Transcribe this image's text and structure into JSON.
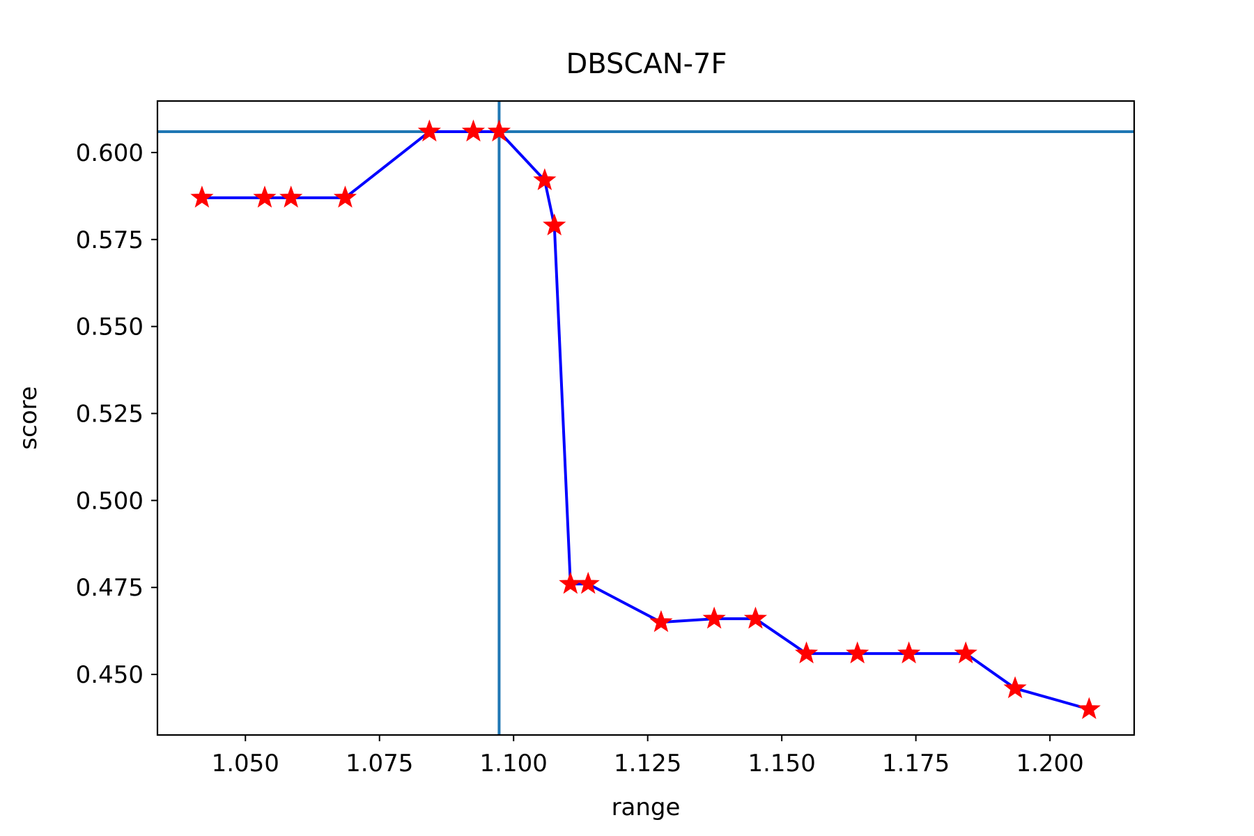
{
  "chart_data": {
    "type": "line",
    "title": "DBSCAN-7F",
    "xlabel": "range",
    "ylabel": "score",
    "xlim": [
      1.0336,
      1.2157
    ],
    "ylim": [
      0.4326,
      0.6148
    ],
    "xticks": [
      1.05,
      1.075,
      1.1,
      1.125,
      1.15,
      1.175,
      1.2
    ],
    "xtick_labels": [
      "1.050",
      "1.075",
      "1.100",
      "1.125",
      "1.150",
      "1.175",
      "1.200"
    ],
    "yticks": [
      0.45,
      0.475,
      0.5,
      0.525,
      0.55,
      0.575,
      0.6
    ],
    "ytick_labels": [
      "0.450",
      "0.475",
      "0.500",
      "0.525",
      "0.550",
      "0.575",
      "0.600"
    ],
    "grid": false,
    "series": [
      {
        "line_color": "#0000ff",
        "marker": "star",
        "marker_color": "#ff0000",
        "x": [
          1.0419,
          1.0536,
          1.0585,
          1.0686,
          1.0843,
          1.0925,
          1.0973,
          1.1058,
          1.1076,
          1.1106,
          1.1139,
          1.1275,
          1.1374,
          1.1451,
          1.1546,
          1.1641,
          1.1737,
          1.1843,
          1.1935,
          1.2073
        ],
        "y": [
          0.587,
          0.587,
          0.587,
          0.587,
          0.606,
          0.606,
          0.606,
          0.592,
          0.579,
          0.476,
          0.476,
          0.465,
          0.466,
          0.466,
          0.456,
          0.456,
          0.456,
          0.456,
          0.446,
          0.44
        ]
      }
    ],
    "reference_lines": {
      "color": "#1f77b4",
      "horizontal_y": 0.606,
      "vertical_x": 1.0973
    }
  }
}
